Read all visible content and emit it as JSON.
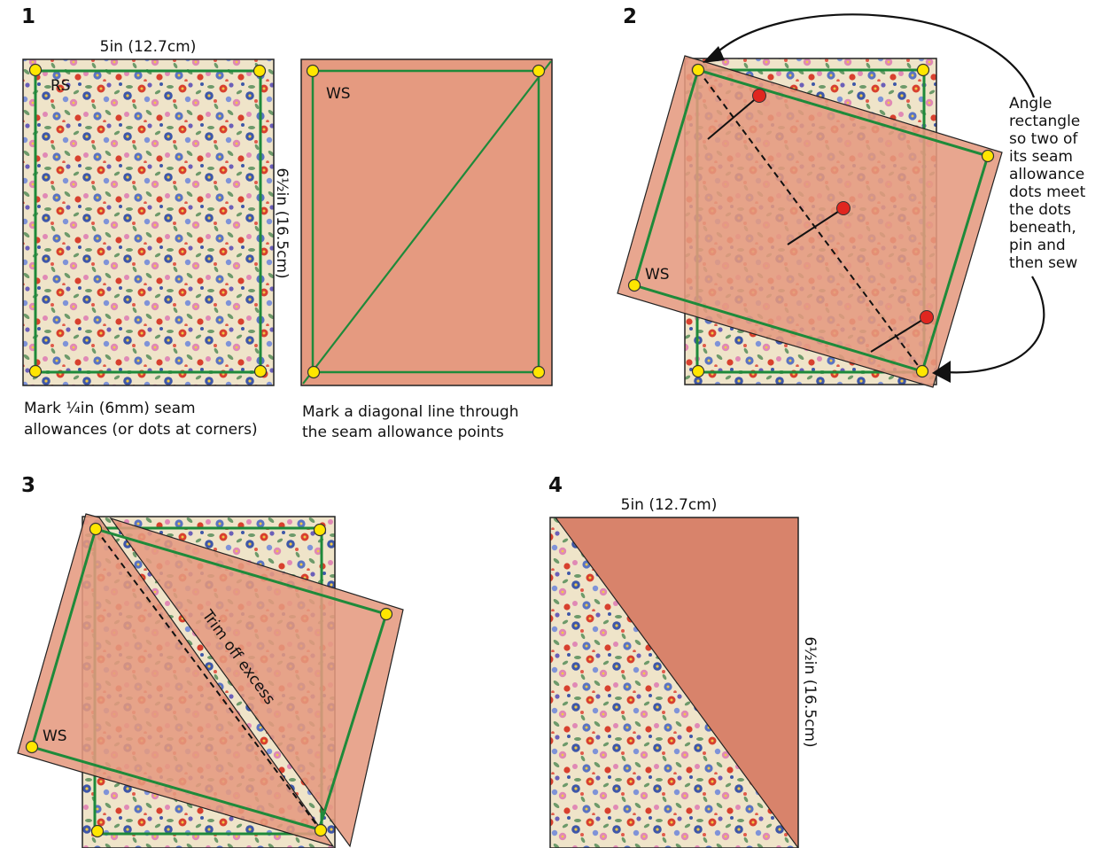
{
  "steps": {
    "s1": "1",
    "s2": "2",
    "s3": "3",
    "s4": "4"
  },
  "labels": {
    "width": "5in (12.7cm)",
    "height": "6½in (16.5cm)",
    "rs": "RS",
    "ws": "WS",
    "trim": "Trim off excess",
    "width_4": "5in (12.7cm)",
    "height_4": "6½in (16.5cm)"
  },
  "captions": {
    "c1_line1": "Mark ¼in (6mm) seam",
    "c1_line2": "allowances (or dots at corners)",
    "c2_line1": "Mark a diagonal line through",
    "c2_line2": "the seam allowance points"
  },
  "note": {
    "lines": [
      "Angle",
      "rectangle",
      "so two of",
      "its seam",
      "allowance",
      "dots meet",
      "the dots",
      "beneath,",
      "pin and",
      "then sew"
    ]
  },
  "colors": {
    "fabric_bg": "#efe3c8",
    "salmon": "#e59a80",
    "salmon_dark": "#d8836b",
    "seam_green": "#1e8a3a",
    "dot_yellow": "#ffe600",
    "pin_red": "#e0261f"
  }
}
